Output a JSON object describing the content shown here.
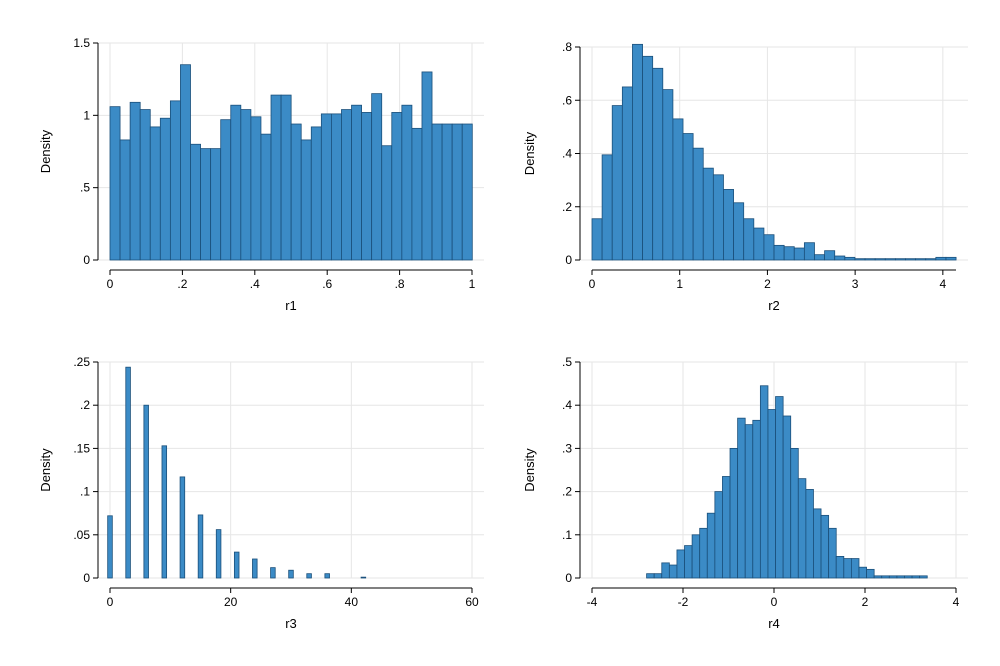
{
  "colors": {
    "bar_fill": "#3b8bc6",
    "bar_edge": "#1a4f7a",
    "grid": "#e6e6e6"
  },
  "chart_data": [
    {
      "type": "bar",
      "xlabel": "r1",
      "ylabel": "Density",
      "xlim": [
        0,
        1
      ],
      "ylim": [
        0,
        1.5
      ],
      "xticks": [
        0,
        0.2,
        0.4,
        0.6,
        0.8,
        1
      ],
      "xtick_labels": [
        "0",
        ".2",
        ".4",
        ".6",
        ".8",
        "1"
      ],
      "yticks": [
        0,
        0.5,
        1,
        1.5
      ],
      "ytick_labels": [
        "0",
        ".5",
        "1",
        "1.5"
      ],
      "grid": true,
      "bin_start": 0,
      "bin_width": 0.0278,
      "values": [
        1.06,
        0.83,
        1.09,
        1.04,
        0.92,
        0.98,
        1.1,
        1.35,
        0.8,
        0.77,
        0.77,
        0.97,
        1.07,
        1.04,
        0.99,
        0.87,
        1.14,
        1.14,
        0.94,
        0.83,
        0.92,
        1.01,
        1.01,
        1.04,
        1.07,
        1.02,
        1.15,
        0.79,
        1.02,
        1.07,
        0.91,
        1.3,
        0.94,
        0.94,
        0.94,
        0.94
      ]
    },
    {
      "type": "bar",
      "xlabel": "r2",
      "ylabel": "Density",
      "xlim": [
        0,
        4.15
      ],
      "ylim": [
        0,
        0.8
      ],
      "xticks": [
        0,
        1,
        2,
        3,
        4
      ],
      "xtick_labels": [
        "0",
        "1",
        "2",
        "3",
        "4"
      ],
      "yticks": [
        0,
        0.2,
        0.4,
        0.6,
        0.8
      ],
      "ytick_labels": [
        "0",
        ".2",
        ".4",
        ".6",
        ".8"
      ],
      "grid": true,
      "bin_start": 0,
      "bin_width": 0.1153,
      "values": [
        0.155,
        0.395,
        0.58,
        0.65,
        0.81,
        0.765,
        0.72,
        0.64,
        0.53,
        0.475,
        0.42,
        0.345,
        0.32,
        0.265,
        0.215,
        0.155,
        0.12,
        0.095,
        0.055,
        0.05,
        0.045,
        0.065,
        0.02,
        0.035,
        0.015,
        0.01,
        0.005,
        0.005,
        0.005,
        0.005,
        0.005,
        0.005,
        0.005,
        0.005,
        0.01,
        0.01
      ]
    },
    {
      "type": "bar",
      "xlabel": "r3",
      "ylabel": "Density",
      "xlim": [
        0,
        60
      ],
      "ylim": [
        0,
        0.25
      ],
      "xticks": [
        0,
        20,
        40,
        60
      ],
      "xtick_labels": [
        "0",
        "20",
        "40",
        "60"
      ],
      "yticks": [
        0,
        0.05,
        0.1,
        0.15,
        0.2,
        0.25
      ],
      "ytick_labels": [
        "0",
        ".05",
        ".1",
        ".15",
        ".2",
        ".25"
      ],
      "grid": true,
      "x": [
        0,
        3,
        6,
        9,
        12,
        15,
        18,
        21,
        24,
        27,
        30,
        33,
        36,
        42
      ],
      "values": [
        0.072,
        0.244,
        0.2,
        0.153,
        0.117,
        0.073,
        0.056,
        0.03,
        0.022,
        0.012,
        0.009,
        0.005,
        0.005,
        0.001
      ]
    },
    {
      "type": "bar",
      "xlabel": "r4",
      "ylabel": "Density",
      "xlim": [
        -4,
        4
      ],
      "ylim": [
        0,
        0.5
      ],
      "xticks": [
        -4,
        -2,
        0,
        2,
        4
      ],
      "xtick_labels": [
        "-4",
        "-2",
        "0",
        "2",
        "4"
      ],
      "yticks": [
        0,
        0.1,
        0.2,
        0.3,
        0.4,
        0.5
      ],
      "ytick_labels": [
        "0",
        ".1",
        ".2",
        ".3",
        ".4",
        ".5"
      ],
      "grid": true,
      "bin_start": -2.8,
      "bin_width": 0.1667,
      "values": [
        0.01,
        0.01,
        0.035,
        0.03,
        0.065,
        0.075,
        0.1,
        0.115,
        0.15,
        0.2,
        0.235,
        0.3,
        0.37,
        0.355,
        0.365,
        0.445,
        0.39,
        0.42,
        0.375,
        0.3,
        0.23,
        0.205,
        0.16,
        0.145,
        0.115,
        0.05,
        0.045,
        0.045,
        0.025,
        0.02,
        0.005,
        0.005,
        0.005,
        0.005,
        0.005,
        0.005,
        0.005
      ]
    }
  ]
}
